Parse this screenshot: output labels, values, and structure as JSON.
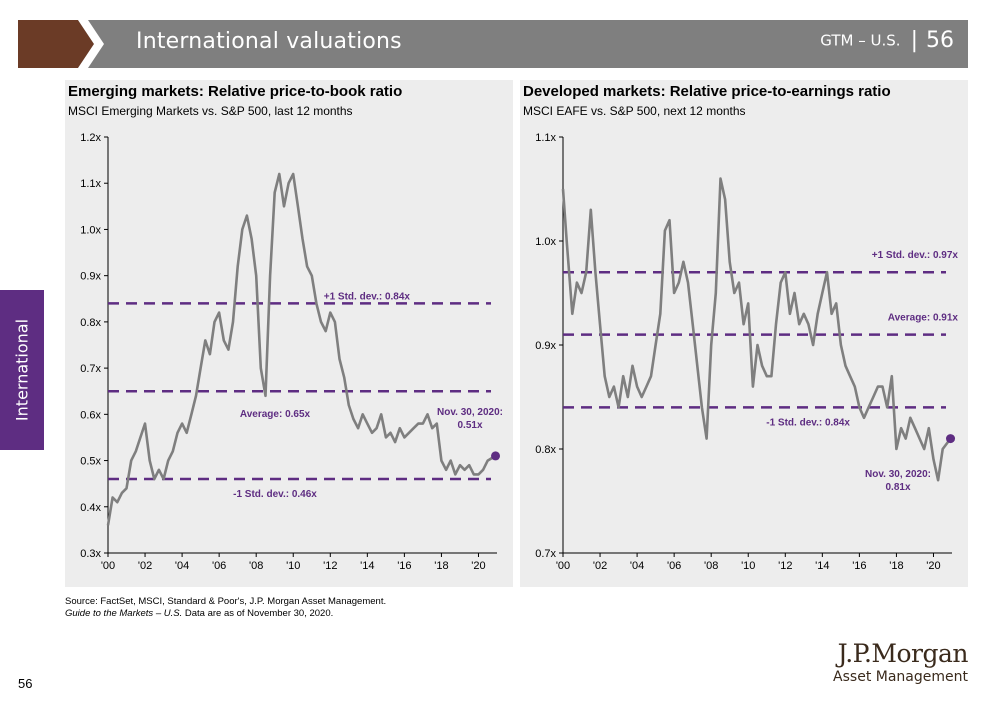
{
  "header": {
    "title": "International valuations",
    "tag": "GTM – U.S.",
    "page": "56",
    "colors": {
      "band": "#7f7f7f",
      "chevron": "#6b3b26",
      "chevron_light": "#ffffff"
    }
  },
  "side_tab": {
    "label": "International",
    "color": "#5e2d82"
  },
  "chart_data": [
    {
      "type": "line",
      "title": "Emerging markets: Relative price-to-book ratio",
      "subtitle": "MSCI Emerging Markets vs. S&P 500, last 12 months",
      "ylim": [
        0.3,
        1.2
      ],
      "xlim": [
        2000,
        2021
      ],
      "yticks": [
        0.3,
        0.4,
        0.5,
        0.6,
        0.7,
        0.8,
        0.9,
        1.0,
        1.1,
        1.2
      ],
      "ytick_labels": [
        "0.3x",
        "0.4x",
        "0.5x",
        "0.6x",
        "0.7x",
        "0.8x",
        "0.9x",
        "1.0x",
        "1.1x",
        "1.2x"
      ],
      "xticks": [
        2000,
        2002,
        2004,
        2006,
        2008,
        2010,
        2012,
        2014,
        2016,
        2018,
        2020
      ],
      "xtick_labels": [
        "'00",
        "'02",
        "'04",
        "'06",
        "'08",
        "'10",
        "'12",
        "'14",
        "'16",
        "'18",
        "'20"
      ],
      "series": [
        {
          "color": "#7f7f7f",
          "x": [
            2000.0,
            2000.25,
            2000.5,
            2000.75,
            2001.0,
            2001.25,
            2001.5,
            2001.75,
            2002.0,
            2002.25,
            2002.5,
            2002.75,
            2003.0,
            2003.25,
            2003.5,
            2003.75,
            2004.0,
            2004.25,
            2004.5,
            2004.75,
            2005.0,
            2005.25,
            2005.5,
            2005.75,
            2006.0,
            2006.25,
            2006.5,
            2006.75,
            2007.0,
            2007.25,
            2007.5,
            2007.75,
            2008.0,
            2008.25,
            2008.5,
            2008.75,
            2009.0,
            2009.25,
            2009.5,
            2009.75,
            2010.0,
            2010.25,
            2010.5,
            2010.75,
            2011.0,
            2011.25,
            2011.5,
            2011.75,
            2012.0,
            2012.25,
            2012.5,
            2012.75,
            2013.0,
            2013.25,
            2013.5,
            2013.75,
            2014.0,
            2014.25,
            2014.5,
            2014.75,
            2015.0,
            2015.25,
            2015.5,
            2015.75,
            2016.0,
            2016.25,
            2016.5,
            2016.75,
            2017.0,
            2017.25,
            2017.5,
            2017.75,
            2018.0,
            2018.25,
            2018.5,
            2018.75,
            2019.0,
            2019.25,
            2019.5,
            2019.75,
            2020.0,
            2020.25,
            2020.5,
            2020.92
          ],
          "y": [
            0.36,
            0.42,
            0.41,
            0.43,
            0.44,
            0.5,
            0.52,
            0.55,
            0.58,
            0.5,
            0.46,
            0.48,
            0.46,
            0.5,
            0.52,
            0.56,
            0.58,
            0.56,
            0.6,
            0.64,
            0.7,
            0.76,
            0.73,
            0.8,
            0.82,
            0.76,
            0.74,
            0.8,
            0.92,
            1.0,
            1.03,
            0.98,
            0.9,
            0.7,
            0.64,
            0.9,
            1.08,
            1.12,
            1.05,
            1.1,
            1.12,
            1.05,
            0.98,
            0.92,
            0.9,
            0.84,
            0.8,
            0.78,
            0.82,
            0.8,
            0.72,
            0.68,
            0.62,
            0.59,
            0.57,
            0.6,
            0.58,
            0.56,
            0.57,
            0.6,
            0.55,
            0.56,
            0.54,
            0.57,
            0.55,
            0.56,
            0.57,
            0.58,
            0.58,
            0.6,
            0.57,
            0.58,
            0.5,
            0.48,
            0.5,
            0.47,
            0.49,
            0.48,
            0.49,
            0.47,
            0.47,
            0.48,
            0.5,
            0.51
          ]
        }
      ],
      "reference_lines": [
        {
          "value": 0.84,
          "label": "+1 Std. dev.: 0.84x"
        },
        {
          "value": 0.65,
          "label": "Average: 0.65x"
        },
        {
          "value": 0.46,
          "label": "-1 Std. dev.: 0.46x"
        }
      ],
      "endpoint": {
        "x": 2020.92,
        "value": 0.51,
        "label_line1": "Nov. 30, 2020:",
        "label_line2": "0.51x"
      },
      "colors": {
        "series": "#7f7f7f",
        "reference": "#5e2d82",
        "label": "#5e2d82"
      }
    },
    {
      "type": "line",
      "title": "Developed markets: Relative price-to-earnings ratio",
      "subtitle": "MSCI EAFE vs. S&P 500, next 12 months",
      "ylim": [
        0.7,
        1.1
      ],
      "xlim": [
        2000,
        2021
      ],
      "yticks": [
        0.7,
        0.8,
        0.9,
        1.0,
        1.1
      ],
      "ytick_labels": [
        "0.7x",
        "0.8x",
        "0.9x",
        "1.0x",
        "1.1x"
      ],
      "xticks": [
        2000,
        2002,
        2004,
        2006,
        2008,
        2010,
        2012,
        2014,
        2016,
        2018,
        2020
      ],
      "xtick_labels": [
        "'00",
        "'02",
        "'04",
        "'06",
        "'08",
        "'10",
        "'12",
        "'14",
        "'16",
        "'18",
        "'20"
      ],
      "series": [
        {
          "color": "#7f7f7f",
          "x": [
            2000.0,
            2000.2,
            2000.5,
            2000.75,
            2001.0,
            2001.25,
            2001.5,
            2001.75,
            2002.0,
            2002.25,
            2002.5,
            2002.75,
            2003.0,
            2003.25,
            2003.5,
            2003.75,
            2004.0,
            2004.25,
            2004.5,
            2004.75,
            2005.0,
            2005.25,
            2005.5,
            2005.75,
            2006.0,
            2006.25,
            2006.5,
            2006.75,
            2007.0,
            2007.25,
            2007.5,
            2007.75,
            2008.0,
            2008.25,
            2008.5,
            2008.75,
            2009.0,
            2009.25,
            2009.5,
            2009.75,
            2010.0,
            2010.25,
            2010.5,
            2010.75,
            2011.0,
            2011.25,
            2011.5,
            2011.75,
            2012.0,
            2012.25,
            2012.5,
            2012.75,
            2013.0,
            2013.25,
            2013.5,
            2013.75,
            2014.0,
            2014.25,
            2014.5,
            2014.75,
            2015.0,
            2015.25,
            2015.5,
            2015.75,
            2016.0,
            2016.25,
            2016.5,
            2016.75,
            2017.0,
            2017.25,
            2017.5,
            2017.75,
            2018.0,
            2018.25,
            2018.5,
            2018.75,
            2019.0,
            2019.25,
            2019.5,
            2019.75,
            2020.0,
            2020.25,
            2020.5,
            2020.92
          ],
          "y": [
            1.05,
            1.0,
            0.93,
            0.96,
            0.95,
            0.97,
            1.03,
            0.97,
            0.92,
            0.87,
            0.85,
            0.86,
            0.84,
            0.87,
            0.85,
            0.88,
            0.86,
            0.85,
            0.86,
            0.87,
            0.9,
            0.93,
            1.01,
            1.02,
            0.95,
            0.96,
            0.98,
            0.96,
            0.92,
            0.88,
            0.84,
            0.81,
            0.9,
            0.95,
            1.06,
            1.04,
            0.98,
            0.95,
            0.96,
            0.92,
            0.94,
            0.86,
            0.9,
            0.88,
            0.87,
            0.87,
            0.92,
            0.96,
            0.97,
            0.93,
            0.95,
            0.92,
            0.93,
            0.92,
            0.9,
            0.93,
            0.95,
            0.97,
            0.93,
            0.94,
            0.9,
            0.88,
            0.87,
            0.86,
            0.84,
            0.83,
            0.84,
            0.85,
            0.86,
            0.86,
            0.84,
            0.87,
            0.8,
            0.82,
            0.81,
            0.83,
            0.82,
            0.81,
            0.8,
            0.82,
            0.79,
            0.77,
            0.8,
            0.81
          ]
        }
      ],
      "reference_lines": [
        {
          "value": 0.97,
          "label": "+1 Std. dev.: 0.97x"
        },
        {
          "value": 0.91,
          "label": "Average: 0.91x"
        },
        {
          "value": 0.84,
          "label": "-1 Std. dev.: 0.84x"
        }
      ],
      "endpoint": {
        "x": 2020.92,
        "value": 0.81,
        "label_line1": "Nov. 30, 2020:",
        "label_line2": "0.81x"
      },
      "colors": {
        "series": "#7f7f7f",
        "reference": "#5e2d82",
        "label": "#5e2d82"
      }
    }
  ],
  "source": {
    "line1": "Source: FactSet, MSCI, Standard & Poor's, J.P. Morgan Asset Management.",
    "line2_italic": "Guide to the Markets – U.S.",
    "line2_rest": " Data are as of November 30, 2020."
  },
  "page_number": "56",
  "logo": {
    "name": "J.P.Morgan",
    "sub": "Asset Management"
  }
}
